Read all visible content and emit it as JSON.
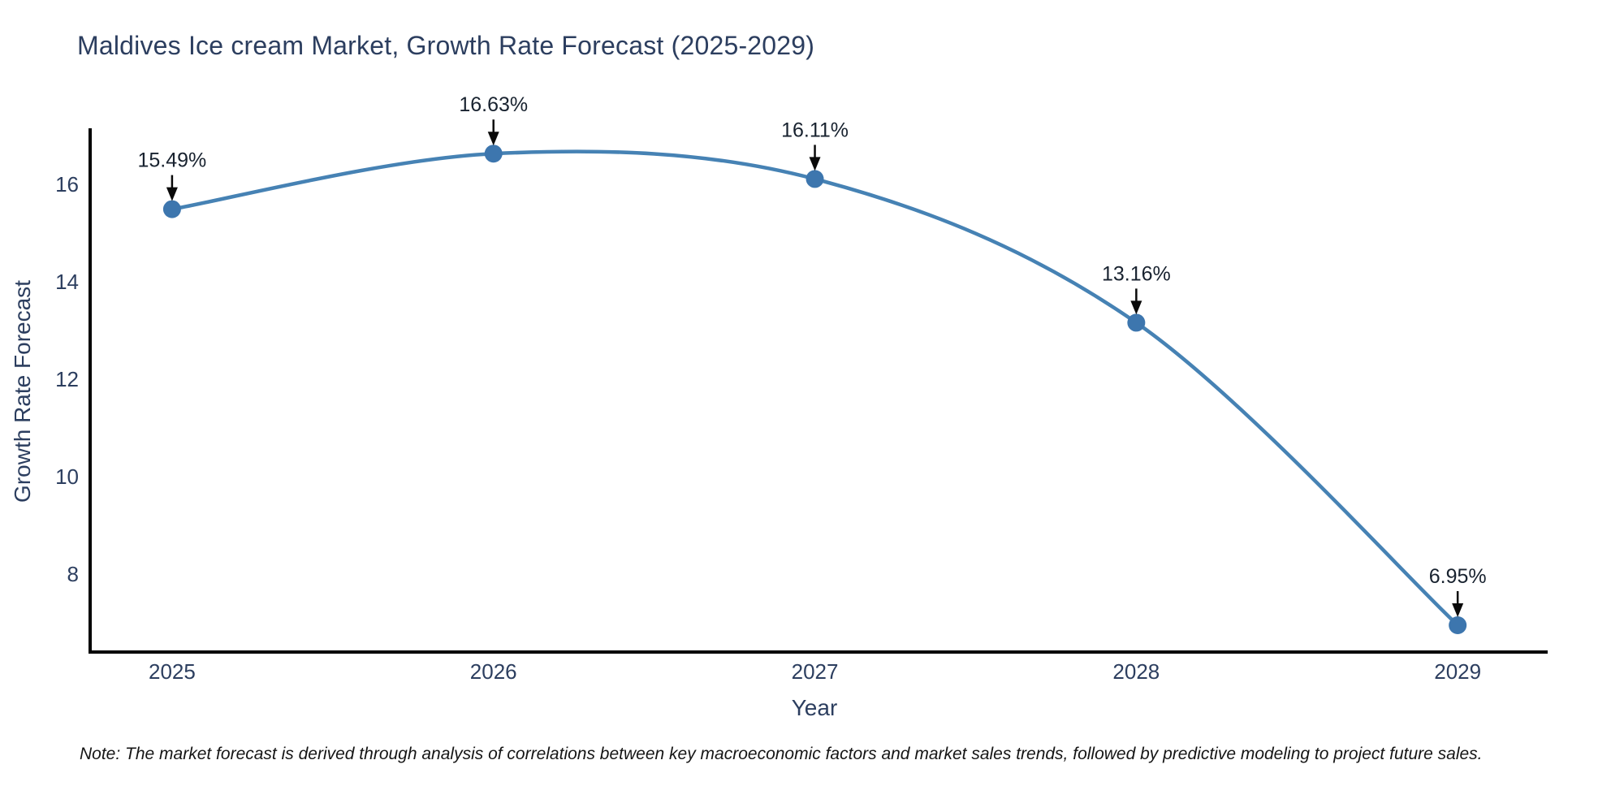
{
  "page": {
    "background": "#ffffff"
  },
  "chart_data": {
    "type": "line",
    "title": "Maldives Ice cream Market, Growth Rate Forecast (2025-2029)",
    "xlabel": "Year",
    "ylabel": "Growth Rate Forecast",
    "categories": [
      "2025",
      "2026",
      "2027",
      "2028",
      "2029"
    ],
    "x": [
      2025,
      2026,
      2027,
      2028,
      2029
    ],
    "values": [
      15.49,
      16.63,
      16.11,
      13.16,
      6.95
    ],
    "point_labels": [
      "15.49%",
      "16.63%",
      "16.11%",
      "13.16%",
      "6.95%"
    ],
    "y_ticks": [
      8,
      10,
      12,
      14,
      16
    ],
    "xlim": [
      2024.74,
      2029.28
    ],
    "ylim": [
      6.4,
      17.15
    ],
    "grid": false,
    "legend_position": "none",
    "line_shape": "spline",
    "note": "Note: The market forecast is derived through analysis of correlations between key macroeconomic factors and market sales trends, followed by predictive modeling to project future sales."
  },
  "colors": {
    "line": "#4682b4",
    "marker": "#3d76ae",
    "axis": "#000000",
    "tick_text": "#2c3e5f",
    "annotation_text": "#18222f",
    "arrow": "#0a0a0a",
    "title_text": "#2c3e5f",
    "note_text": "#151515"
  }
}
